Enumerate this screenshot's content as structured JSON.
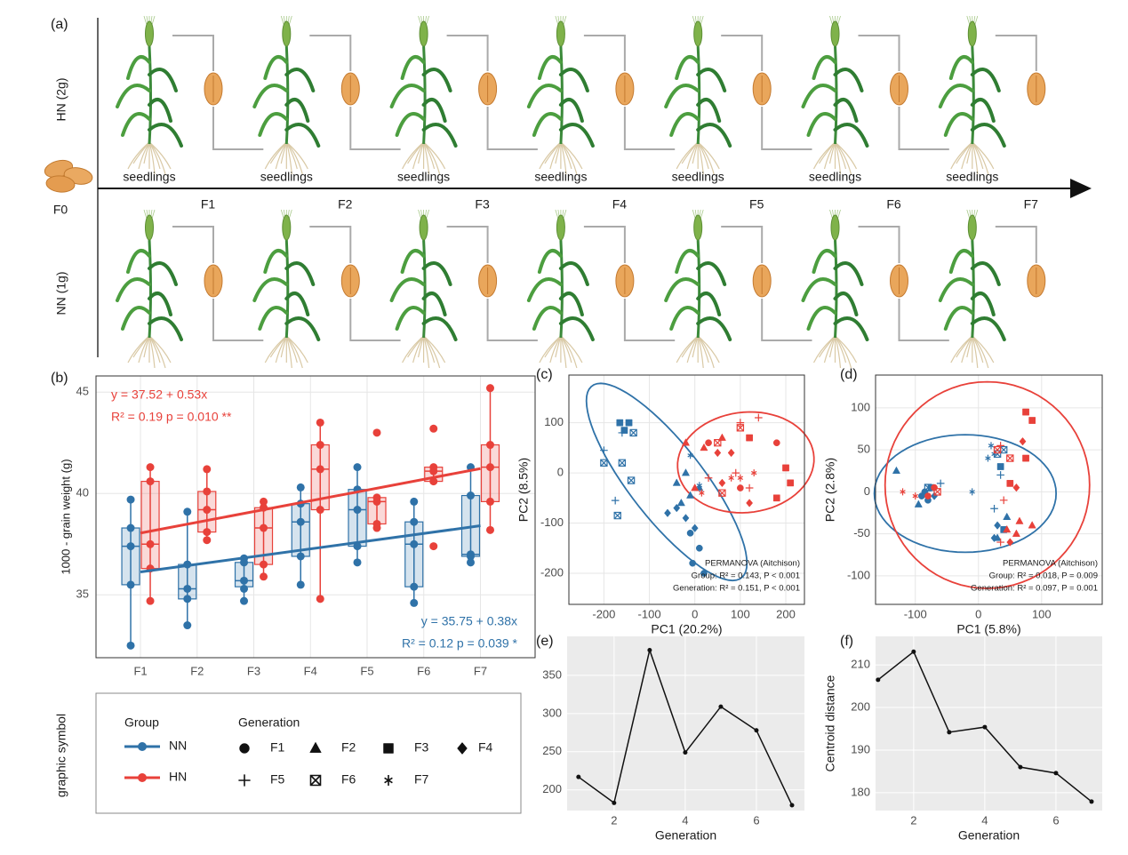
{
  "diagram": {
    "label": "(a)",
    "rows": [
      "HN (2g)",
      "NN (1g)"
    ],
    "start": "F0",
    "stage": "seedlings",
    "generations": [
      "F1",
      "F2",
      "F3",
      "F4",
      "F5",
      "F6",
      "F7"
    ]
  },
  "legend": {
    "title": "graphic symbol",
    "group_title": "Group",
    "generation_title": "Generation"
  },
  "chart_data": [
    {
      "type": "box",
      "label": "(b)",
      "y_label": "1000 - grain weight (g)",
      "categories": [
        "F1",
        "F2",
        "F3",
        "F4",
        "F5",
        "F6",
        "F7"
      ],
      "ylim": [
        31.9,
        45.8
      ],
      "yticks": [
        35,
        40,
        45
      ],
      "grid": true,
      "series": [
        {
          "name": "NN",
          "color": "#2f72a8",
          "boxes": [
            {
              "min": 32.5,
              "q1": 35.5,
              "median": 37.4,
              "q3": 38.3,
              "max": 39.7
            },
            {
              "min": 33.5,
              "q1": 34.8,
              "median": 35.3,
              "q3": 36.5,
              "max": 39.1
            },
            {
              "min": 34.7,
              "q1": 35.4,
              "median": 35.7,
              "q3": 36.6,
              "max": 36.8
            },
            {
              "min": 35.5,
              "q1": 36.9,
              "median": 38.6,
              "q3": 39.5,
              "max": 40.3
            },
            {
              "min": 36.6,
              "q1": 37.4,
              "median": 39.2,
              "q3": 40.2,
              "max": 41.3
            },
            {
              "min": 34.6,
              "q1": 35.4,
              "median": 37.5,
              "q3": 38.6,
              "max": 39.6
            },
            {
              "min": 36.6,
              "q1": 36.9,
              "median": 37.0,
              "q3": 39.9,
              "max": 41.3
            }
          ],
          "points": [
            [
              39.7,
              38.3,
              37.4,
              35.5,
              32.5
            ],
            [
              39.1,
              36.5,
              35.3,
              34.8,
              33.5
            ],
            [
              36.8,
              36.6,
              35.7,
              35.3,
              34.7
            ],
            [
              40.3,
              39.5,
              38.6,
              36.9,
              35.5
            ],
            [
              41.3,
              40.2,
              39.2,
              37.4,
              36.6
            ],
            [
              39.6,
              38.6,
              37.5,
              35.4,
              34.6
            ],
            [
              41.3,
              39.9,
              37.0,
              36.9,
              36.6
            ]
          ],
          "fit": [
            36.13,
            38.41
          ],
          "equation": "y = 35.75 + 0.38x",
          "stats": "R² = 0.12   p = 0.039 *"
        },
        {
          "name": "HN",
          "color": "#e8413a",
          "boxes": [
            {
              "min": 34.7,
              "q1": 36.3,
              "median": 37.5,
              "q3": 40.6,
              "max": 41.3
            },
            {
              "min": 37.7,
              "q1": 38.1,
              "median": 39.2,
              "q3": 40.1,
              "max": 41.2
            },
            {
              "min": 35.9,
              "q1": 36.5,
              "median": 38.3,
              "q3": 39.3,
              "max": 39.6
            },
            {
              "min": 34.8,
              "q1": 39.2,
              "median": 41.2,
              "q3": 42.4,
              "max": 43.5
            },
            {
              "min": 38.3,
              "q1": 38.5,
              "median": 39.6,
              "q3": 39.8,
              "max": 39.8
            },
            {
              "min": 40.5,
              "q1": 40.6,
              "median": 41.1,
              "q3": 41.3,
              "max": 41.3
            },
            {
              "min": 38.2,
              "q1": 39.6,
              "median": 41.3,
              "q3": 42.4,
              "max": 45.2
            }
          ],
          "points": [
            [
              41.3,
              40.6,
              37.5,
              36.3,
              34.7
            ],
            [
              41.2,
              40.1,
              39.2,
              38.1,
              37.7
            ],
            [
              39.6,
              39.3,
              38.3,
              36.5,
              35.9
            ],
            [
              43.5,
              42.4,
              41.2,
              39.2,
              34.8
            ],
            [
              43.0,
              39.8,
              39.6,
              38.5,
              38.3
            ],
            [
              43.2,
              41.3,
              41.1,
              40.6,
              37.4
            ],
            [
              45.2,
              42.4,
              41.3,
              39.6,
              38.2
            ]
          ],
          "fit": [
            38.05,
            41.23
          ],
          "equation": "y = 37.52 + 0.53x",
          "stats": "R² = 0.19   p = 0.010 **"
        }
      ]
    },
    {
      "type": "scatter",
      "label": "(c)",
      "x_label": "PC1 (20.2%)",
      "y_label": "PC2 (8.5%)",
      "xlim": [
        -277,
        241
      ],
      "ylim": [
        -262,
        195
      ],
      "xticks": [
        -200,
        -100,
        0,
        100,
        200
      ],
      "yticks": [
        -200,
        -100,
        0,
        100
      ],
      "grid": true,
      "annotations": [
        "PERMANOVA (Aitchison)",
        "Group: R² = 0.143, P < 0.001",
        "Generation:  R² = 0.151, P < 0.001"
      ],
      "series": [
        {
          "name": "NN",
          "color": "#2f72a8",
          "x": [
            -10,
            10,
            20,
            -5,
            -40,
            -20,
            -30,
            10,
            -10,
            -145,
            -165,
            -155,
            -20,
            -40,
            -60,
            0,
            -200,
            -175,
            -160,
            -135,
            -200,
            -160,
            -170,
            -140,
            -10,
            10
          ],
          "y": [
            -120,
            -150,
            -200,
            -180,
            -20,
            0,
            -60,
            -30,
            -45,
            100,
            100,
            85,
            -90,
            -70,
            -80,
            -110,
            45,
            -55,
            80,
            80,
            20,
            20,
            -85,
            -15,
            35,
            -25
          ],
          "generation": [
            1,
            1,
            1,
            1,
            2,
            2,
            2,
            2,
            2,
            3,
            3,
            3,
            4,
            4,
            4,
            4,
            5,
            5,
            5,
            6,
            6,
            6,
            6,
            6,
            7,
            7
          ],
          "ellipse": {
            "center": [
              -62,
              -18
            ],
            "axis_a": [
              166,
              -190
            ],
            "axis_b": [
              60,
              50
            ]
          }
        },
        {
          "name": "HN",
          "color": "#e8413a",
          "x": [
            30,
            180,
            100,
            -20,
            20,
            0,
            60,
            120,
            200,
            210,
            180,
            50,
            80,
            120,
            60,
            140,
            100,
            90,
            30,
            120,
            100,
            50,
            60,
            100,
            80,
            15,
            130
          ],
          "y": [
            60,
            60,
            -30,
            60,
            50,
            -30,
            70,
            70,
            10,
            -20,
            -50,
            40,
            40,
            -60,
            -20,
            110,
            100,
            0,
            -10,
            -30,
            90,
            60,
            -40,
            -10,
            -10,
            -40,
            0
          ],
          "generation": [
            1,
            1,
            1,
            2,
            2,
            2,
            2,
            3,
            3,
            3,
            3,
            4,
            4,
            4,
            4,
            5,
            5,
            5,
            5,
            5,
            6,
            6,
            6,
            7,
            7,
            7,
            7
          ],
          "ellipse": {
            "center": [
              112,
              21
            ],
            "axis_a": [
              150,
              10
            ],
            "axis_b": [
              -5,
              100
            ]
          }
        }
      ]
    },
    {
      "type": "scatter",
      "label": "(d)",
      "x_label": "PC1 (5.8%)",
      "y_label": "PC2 (2.8%)",
      "xlim": [
        -163,
        196
      ],
      "ylim": [
        -134,
        139
      ],
      "xticks": [
        -100,
        0,
        100
      ],
      "yticks": [
        -100,
        -50,
        0,
        50,
        100
      ],
      "grid": true,
      "annotations": [
        "PERMANOVA (Aitchison)",
        "Group: R² = 0.018, P = 0.009",
        "Generation:  R² = 0.097, P = 0.001"
      ],
      "series": [
        {
          "name": "NN",
          "color": "#2f72a8",
          "x": [
            -90,
            -85,
            -80,
            -130,
            -95,
            30,
            45,
            -75,
            35,
            40,
            -70,
            25,
            30,
            -60,
            35,
            25,
            40,
            30,
            -80,
            20,
            25,
            -10,
            15
          ],
          "y": [
            -5,
            0,
            -10,
            25,
            -15,
            -55,
            -30,
            5,
            30,
            -45,
            -5,
            -55,
            -40,
            10,
            20,
            -20,
            50,
            45,
            5,
            55,
            45,
            0,
            40
          ],
          "generation": [
            1,
            1,
            1,
            2,
            2,
            2,
            2,
            3,
            3,
            3,
            4,
            4,
            4,
            5,
            5,
            5,
            6,
            6,
            6,
            7,
            7,
            7,
            7
          ],
          "ellipse": {
            "center": [
              -21,
              -2
            ],
            "axis_a": [
              144,
              0
            ],
            "axis_b": [
              0,
              70
            ]
          }
        },
        {
          "name": "HN",
          "color": "#e8413a",
          "x": [
            -80,
            -70,
            45,
            60,
            65,
            85,
            75,
            85,
            75,
            50,
            70,
            60,
            50,
            40,
            35,
            35,
            -65,
            50,
            30,
            -120,
            -100
          ],
          "y": [
            -5,
            5,
            -45,
            -50,
            -35,
            -40,
            95,
            85,
            40,
            10,
            60,
            5,
            -60,
            -10,
            55,
            -60,
            0,
            40,
            50,
            0,
            -5
          ],
          "generation": [
            1,
            1,
            2,
            2,
            2,
            2,
            3,
            3,
            3,
            3,
            4,
            4,
            4,
            5,
            5,
            5,
            6,
            6,
            6,
            7,
            7
          ],
          "ellipse": {
            "center": [
              14,
              8
            ],
            "axis_a": [
              162,
              0
            ],
            "axis_b": [
              0,
              123
            ]
          }
        }
      ]
    },
    {
      "type": "line",
      "label": "(e)",
      "x_label": "Generation",
      "x": [
        1,
        2,
        3,
        4,
        5,
        6,
        7
      ],
      "values": [
        217,
        183,
        383,
        249,
        309,
        278,
        180
      ],
      "color": "#111111",
      "xlim": [
        0.68,
        7.35
      ],
      "ylim": [
        173,
        401
      ],
      "xticks": [
        2,
        4,
        6
      ],
      "yticks": [
        200,
        250,
        300,
        350
      ],
      "grid": true
    },
    {
      "type": "line",
      "label": "(f)",
      "x_label": "Generation",
      "y_label": "Centroid distance",
      "x": [
        1,
        2,
        3,
        4,
        5,
        6,
        7
      ],
      "values": [
        206.5,
        213.1,
        194.2,
        195.4,
        186.0,
        184.6,
        177.9
      ],
      "color": "#111111",
      "xlim": [
        0.93,
        7.3
      ],
      "ylim": [
        175.8,
        216.7
      ],
      "xticks": [
        2,
        4,
        6
      ],
      "yticks": [
        180,
        190,
        200,
        210
      ],
      "grid": true
    }
  ]
}
